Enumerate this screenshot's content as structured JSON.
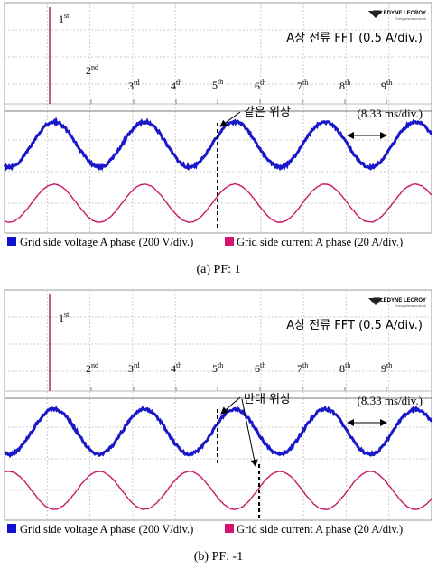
{
  "panels": [
    {
      "brand": "TELEDYNE LECROY",
      "brand_tagline": "Everywhereyoulook",
      "fft_label": "A상 전류 FFT (0.5 A/div.)",
      "time_label": "(8.33 ms/div.)",
      "annotation": "같은 위상",
      "harmonics": [
        {
          "n": "1",
          "sup": "st"
        },
        {
          "n": "2",
          "sup": "nd"
        },
        {
          "n": "3",
          "sup": "rd"
        },
        {
          "n": "4",
          "sup": "th"
        },
        {
          "n": "5",
          "sup": "th"
        },
        {
          "n": "6",
          "sup": "th"
        },
        {
          "n": "7",
          "sup": "th"
        },
        {
          "n": "8",
          "sup": "th"
        },
        {
          "n": "9",
          "sup": "th"
        }
      ],
      "legend": [
        "Grid side voltage A phase (200 V/div.)",
        "Grid side current A phase (20 A/div.)"
      ],
      "caption": "(a)  PF:  1"
    },
    {
      "brand": "TELEDYNE LECROY",
      "brand_tagline": "Everywhereyoulook",
      "fft_label": "A상 전류 FFT (0.5 A/div.)",
      "time_label": "(8.33 ms/div.)",
      "annotation": "반대 위상",
      "harmonics": [
        {
          "n": "1",
          "sup": "st"
        },
        {
          "n": "2",
          "sup": "nd"
        },
        {
          "n": "3",
          "sup": "rd"
        },
        {
          "n": "4",
          "sup": "th"
        },
        {
          "n": "5",
          "sup": "th"
        },
        {
          "n": "6",
          "sup": "th"
        },
        {
          "n": "7",
          "sup": "th"
        },
        {
          "n": "8",
          "sup": "th"
        },
        {
          "n": "9",
          "sup": "th"
        }
      ],
      "legend": [
        "Grid side voltage A phase (200 V/div.)",
        "Grid side current A phase (20 A/div.)"
      ],
      "caption": "(b)  PF:  -1"
    }
  ]
}
